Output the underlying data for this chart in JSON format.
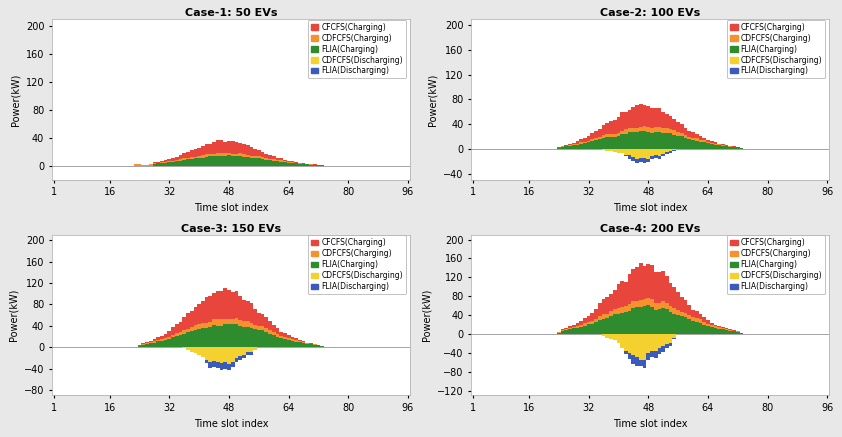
{
  "cases": [
    {
      "title": "Case-1: 50 EVs",
      "ylim": [
        -20,
        210
      ],
      "yticks": [
        0,
        40,
        80,
        120,
        160,
        200
      ]
    },
    {
      "title": "Case-2: 100 EVs",
      "ylim": [
        -50,
        210
      ],
      "yticks": [
        -40,
        0,
        40,
        80,
        120,
        160,
        200
      ]
    },
    {
      "title": "Case-3: 150 EVs",
      "ylim": [
        -90,
        210
      ],
      "yticks": [
        -80,
        -40,
        0,
        40,
        80,
        120,
        160,
        200
      ]
    },
    {
      "title": "Case-4: 200 EVs",
      "ylim": [
        -130,
        210
      ],
      "yticks": [
        -120,
        -80,
        -40,
        0,
        40,
        80,
        120,
        160,
        200
      ]
    }
  ],
  "colors": {
    "CFCFS_charge": "#e8463c",
    "CDFCFS_charge": "#f5922f",
    "FLIA_charge": "#2e8b2e",
    "CDFCFS_discharge": "#f5d130",
    "FLIA_discharge": "#3a5abf"
  },
  "legend_labels": [
    "CFCFS(Charging)",
    "CDFCFS(Charging)",
    "FLIA(Charging)",
    "CDFCFS(Discharging)",
    "FLIA(Discharging)"
  ],
  "xticks": [
    1,
    16,
    32,
    48,
    64,
    80,
    96
  ],
  "xlabel": "Time slot index",
  "ylabel": "Power(kW)",
  "background": "#e8e8e8"
}
